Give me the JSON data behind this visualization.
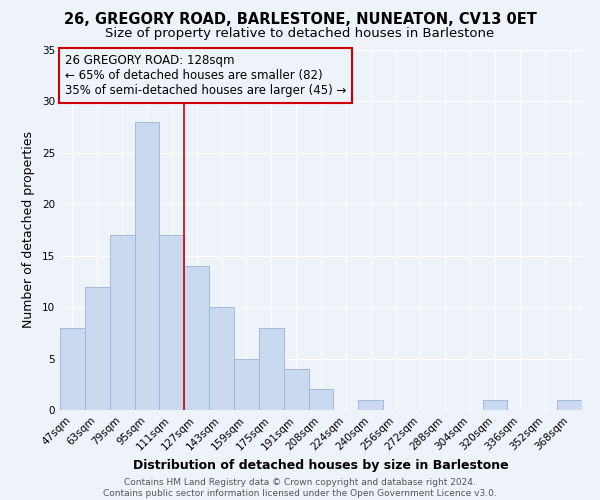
{
  "title1": "26, GREGORY ROAD, BARLESTONE, NUNEATON, CV13 0ET",
  "title2": "Size of property relative to detached houses in Barlestone",
  "xlabel": "Distribution of detached houses by size in Barlestone",
  "ylabel": "Number of detached properties",
  "footer1": "Contains HM Land Registry data © Crown copyright and database right 2024.",
  "footer2": "Contains public sector information licensed under the Open Government Licence v3.0.",
  "bar_labels": [
    "47sqm",
    "63sqm",
    "79sqm",
    "95sqm",
    "111sqm",
    "127sqm",
    "143sqm",
    "159sqm",
    "175sqm",
    "191sqm",
    "208sqm",
    "224sqm",
    "240sqm",
    "256sqm",
    "272sqm",
    "288sqm",
    "304sqm",
    "320sqm",
    "336sqm",
    "352sqm",
    "368sqm"
  ],
  "bar_values": [
    8,
    12,
    17,
    28,
    17,
    14,
    10,
    5,
    8,
    4,
    2,
    0,
    1,
    0,
    0,
    0,
    0,
    1,
    0,
    0,
    1
  ],
  "bar_color": "#c9d9f0",
  "bar_edge_color": "#9ab5d4",
  "ylim": [
    0,
    35
  ],
  "yticks": [
    0,
    5,
    10,
    15,
    20,
    25,
    30,
    35
  ],
  "vline_x_index": 4.5,
  "vline_color": "#cc0000",
  "annotation_line1": "26 GREGORY ROAD: 128sqm",
  "annotation_line2": "← 65% of detached houses are smaller (82)",
  "annotation_line3": "35% of semi-detached houses are larger (45) →",
  "annotation_box_edge_color": "#cc0000",
  "background_color": "#eef2f9",
  "grid_color": "#ffffff",
  "title_fontsize": 10.5,
  "subtitle_fontsize": 9.5,
  "axis_label_fontsize": 9,
  "tick_fontsize": 7.5,
  "annotation_fontsize": 8.5,
  "footer_fontsize": 6.5
}
